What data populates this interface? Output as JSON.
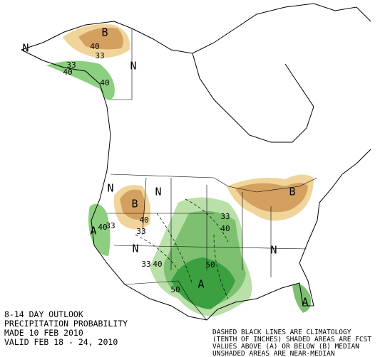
{
  "title_block": {
    "lines": [
      "8-14 DAY OUTLOOK",
      "PRECIPITATION PROBABILITY",
      "MADE  10 FEB 2010",
      "VALID  FEB 18 - 24, 2010"
    ]
  },
  "legend_note": {
    "lines": [
      "DASHED BLACK LINES ARE CLIMATOLOGY",
      "(TENTH OF INCHES) SHADED AREAS ARE FCST",
      "VALUES ABOVE (A) OR BELOW (B) MEDIAN",
      "UNSHADED AREAS ARE NEAR-MEDIAN"
    ]
  },
  "map_labels": [
    "N",
    "B",
    "40",
    "33",
    "N",
    "33",
    "40",
    "40",
    "N",
    "B",
    "40",
    "33",
    "N",
    "A",
    "40",
    "33",
    "N",
    "33",
    "40",
    "33",
    "40",
    "50",
    "50",
    "A",
    "B",
    "N",
    "A"
  ]
}
